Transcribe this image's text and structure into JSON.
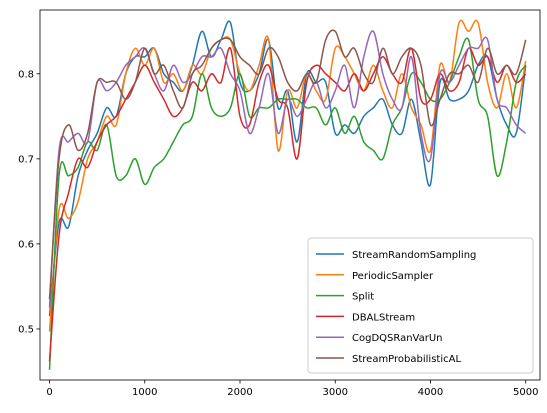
{
  "chart_data": {
    "type": "line",
    "xlim": [
      -100,
      5150
    ],
    "ylim": [
      0.44,
      0.875
    ],
    "xticks": [
      0,
      1000,
      2000,
      3000,
      4000,
      5000
    ],
    "xtick_labels": [
      "0",
      "1000",
      "2000",
      "3000",
      "4000",
      "5000"
    ],
    "yticks": [
      0.5,
      0.6,
      0.7,
      0.8
    ],
    "ytick_labels": [
      "0.5",
      "0.6",
      "0.7",
      "0.8"
    ],
    "legend_position": "lower-right",
    "grid": false,
    "series": [
      {
        "name": "StreamRandomSampling",
        "color": "#1f77b4",
        "x": [
          0,
          100,
          200,
          300,
          400,
          500,
          600,
          700,
          800,
          900,
          1000,
          1100,
          1200,
          1300,
          1400,
          1500,
          1600,
          1700,
          1800,
          1900,
          2000,
          2100,
          2200,
          2300,
          2400,
          2500,
          2600,
          2700,
          2800,
          2900,
          3000,
          3100,
          3200,
          3300,
          3400,
          3500,
          3600,
          3700,
          3800,
          3900,
          4000,
          4100,
          4200,
          4300,
          4400,
          4500,
          4600,
          4700,
          4800,
          4900,
          5000
        ],
        "values": [
          0.515,
          0.625,
          0.62,
          0.68,
          0.71,
          0.73,
          0.76,
          0.75,
          0.8,
          0.82,
          0.82,
          0.83,
          0.8,
          0.79,
          0.78,
          0.81,
          0.85,
          0.82,
          0.84,
          0.86,
          0.79,
          0.78,
          0.8,
          0.84,
          0.76,
          0.78,
          0.72,
          0.8,
          0.79,
          0.79,
          0.73,
          0.74,
          0.73,
          0.75,
          0.76,
          0.77,
          0.74,
          0.73,
          0.77,
          0.72,
          0.67,
          0.79,
          0.77,
          0.77,
          0.78,
          0.81,
          0.82,
          0.77,
          0.74,
          0.73,
          0.81
        ]
      },
      {
        "name": "PeriodicSampler",
        "color": "#ff7f0e",
        "x": [
          0,
          100,
          200,
          300,
          400,
          500,
          600,
          700,
          800,
          900,
          1000,
          1100,
          1200,
          1300,
          1400,
          1500,
          1600,
          1700,
          1800,
          1900,
          2000,
          2100,
          2200,
          2300,
          2400,
          2500,
          2600,
          2700,
          2800,
          2900,
          3000,
          3100,
          3200,
          3300,
          3400,
          3500,
          3600,
          3700,
          3800,
          3900,
          4000,
          4100,
          4200,
          4300,
          4400,
          4500,
          4600,
          4700,
          4800,
          4900,
          5000
        ],
        "values": [
          0.497,
          0.64,
          0.63,
          0.65,
          0.7,
          0.72,
          0.75,
          0.74,
          0.8,
          0.83,
          0.81,
          0.83,
          0.79,
          0.8,
          0.78,
          0.81,
          0.8,
          0.83,
          0.84,
          0.84,
          0.8,
          0.78,
          0.81,
          0.84,
          0.71,
          0.78,
          0.76,
          0.8,
          0.78,
          0.77,
          0.83,
          0.82,
          0.8,
          0.78,
          0.81,
          0.78,
          0.76,
          0.8,
          0.76,
          0.74,
          0.71,
          0.81,
          0.79,
          0.86,
          0.85,
          0.86,
          0.79,
          0.76,
          0.8,
          0.76,
          0.815
        ]
      },
      {
        "name": "Split",
        "color": "#2ca02c",
        "x": [
          0,
          100,
          200,
          300,
          400,
          500,
          600,
          700,
          800,
          900,
          1000,
          1100,
          1200,
          1300,
          1400,
          1500,
          1600,
          1700,
          1800,
          1900,
          2000,
          2100,
          2200,
          2300,
          2400,
          2500,
          2600,
          2700,
          2800,
          2900,
          3000,
          3100,
          3200,
          3300,
          3400,
          3500,
          3600,
          3700,
          3800,
          3900,
          4000,
          4100,
          4200,
          4300,
          4400,
          4500,
          4600,
          4700,
          4800,
          4900,
          5000
        ],
        "values": [
          0.452,
          0.68,
          0.68,
          0.69,
          0.72,
          0.71,
          0.74,
          0.68,
          0.68,
          0.7,
          0.67,
          0.69,
          0.7,
          0.72,
          0.74,
          0.75,
          0.8,
          0.76,
          0.75,
          0.76,
          0.8,
          0.75,
          0.76,
          0.76,
          0.77,
          0.77,
          0.77,
          0.76,
          0.76,
          0.74,
          0.76,
          0.73,
          0.75,
          0.72,
          0.71,
          0.7,
          0.74,
          0.76,
          0.8,
          0.79,
          0.77,
          0.77,
          0.79,
          0.82,
          0.84,
          0.77,
          0.75,
          0.68,
          0.72,
          0.79,
          0.81
        ]
      },
      {
        "name": "DBALStream",
        "color": "#d62728",
        "x": [
          0,
          100,
          200,
          300,
          400,
          500,
          600,
          700,
          800,
          900,
          1000,
          1100,
          1200,
          1300,
          1400,
          1500,
          1600,
          1700,
          1800,
          1900,
          2000,
          2100,
          2200,
          2300,
          2400,
          2500,
          2600,
          2700,
          2800,
          2900,
          3000,
          3100,
          3200,
          3300,
          3400,
          3500,
          3600,
          3700,
          3800,
          3900,
          4000,
          4100,
          4200,
          4300,
          4400,
          4500,
          4600,
          4700,
          4800,
          4900,
          5000
        ],
        "values": [
          0.462,
          0.61,
          0.66,
          0.7,
          0.69,
          0.72,
          0.74,
          0.75,
          0.77,
          0.79,
          0.81,
          0.79,
          0.77,
          0.75,
          0.76,
          0.79,
          0.78,
          0.8,
          0.79,
          0.83,
          0.75,
          0.74,
          0.79,
          0.81,
          0.77,
          0.76,
          0.7,
          0.79,
          0.81,
          0.8,
          0.79,
          0.78,
          0.8,
          0.78,
          0.8,
          0.82,
          0.8,
          0.79,
          0.83,
          0.77,
          0.77,
          0.8,
          0.78,
          0.79,
          0.83,
          0.81,
          0.82,
          0.79,
          0.81,
          0.79,
          0.8
        ]
      },
      {
        "name": "CogDQSRanVarUn",
        "color": "#9467bd",
        "x": [
          0,
          100,
          200,
          300,
          400,
          500,
          600,
          700,
          800,
          900,
          1000,
          1100,
          1200,
          1300,
          1400,
          1500,
          1600,
          1700,
          1800,
          1900,
          2000,
          2100,
          2200,
          2300,
          2400,
          2500,
          2600,
          2700,
          2800,
          2900,
          3000,
          3100,
          3200,
          3300,
          3400,
          3500,
          3600,
          3700,
          3800,
          3900,
          4000,
          4100,
          4200,
          4300,
          4400,
          4500,
          4600,
          4700,
          4800,
          4900,
          5000
        ],
        "values": [
          0.525,
          0.71,
          0.72,
          0.73,
          0.72,
          0.79,
          0.78,
          0.79,
          0.81,
          0.82,
          0.83,
          0.8,
          0.78,
          0.81,
          0.79,
          0.8,
          0.82,
          0.82,
          0.83,
          0.8,
          0.78,
          0.73,
          0.76,
          0.8,
          0.73,
          0.77,
          0.75,
          0.77,
          0.79,
          0.76,
          0.78,
          0.81,
          0.76,
          0.82,
          0.85,
          0.8,
          0.77,
          0.76,
          0.82,
          0.73,
          0.7,
          0.8,
          0.79,
          0.81,
          0.83,
          0.83,
          0.84,
          0.77,
          0.76,
          0.74,
          0.73
        ]
      },
      {
        "name": "StreamProbabilisticAL",
        "color": "#8c564b",
        "x": [
          0,
          100,
          200,
          300,
          400,
          500,
          600,
          700,
          800,
          900,
          1000,
          1100,
          1200,
          1300,
          1400,
          1500,
          1600,
          1700,
          1800,
          1900,
          2000,
          2100,
          2200,
          2300,
          2400,
          2500,
          2600,
          2700,
          2800,
          2900,
          3000,
          3100,
          3200,
          3300,
          3400,
          3500,
          3600,
          3700,
          3800,
          3900,
          4000,
          4100,
          4200,
          4300,
          4400,
          4500,
          4600,
          4700,
          4800,
          4900,
          5000
        ],
        "values": [
          0.535,
          0.7,
          0.74,
          0.71,
          0.73,
          0.79,
          0.79,
          0.79,
          0.77,
          0.79,
          0.83,
          0.8,
          0.81,
          0.78,
          0.76,
          0.8,
          0.81,
          0.83,
          0.84,
          0.84,
          0.82,
          0.81,
          0.8,
          0.83,
          0.82,
          0.79,
          0.78,
          0.8,
          0.79,
          0.84,
          0.85,
          0.82,
          0.83,
          0.8,
          0.79,
          0.83,
          0.8,
          0.82,
          0.83,
          0.81,
          0.74,
          0.77,
          0.8,
          0.8,
          0.81,
          0.79,
          0.83,
          0.8,
          0.81,
          0.8,
          0.84
        ]
      }
    ]
  }
}
